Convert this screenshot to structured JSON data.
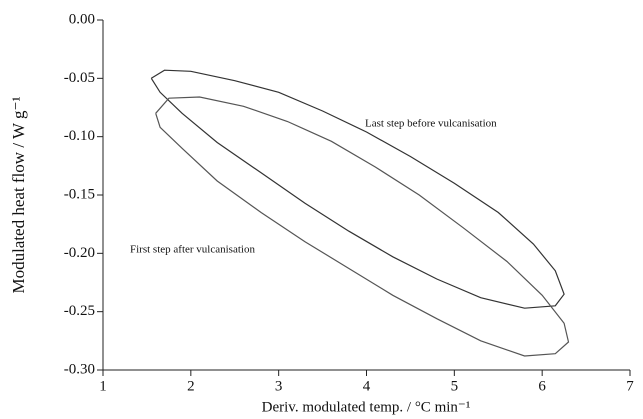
{
  "chart_data": {
    "type": "line",
    "xlabel": "Deriv. modulated temp. / °C min⁻¹",
    "ylabel": "Modulated heat flow / W g⁻¹",
    "xlim": [
      1,
      7
    ],
    "xticks": [
      1,
      2,
      3,
      4,
      5,
      6,
      7
    ],
    "ylim": [
      -0.3,
      0
    ],
    "yticks": [
      {
        "value": 0,
        "label": "0.00"
      },
      -0.05,
      {
        "value": -0.1,
        "label": "-0.10"
      },
      -0.15,
      {
        "value": -0.2,
        "label": "-0.20"
      },
      -0.25,
      {
        "value": -0.3,
        "label": "-0.30"
      }
    ],
    "grid": false,
    "legend": false,
    "series": [
      {
        "name": "Last step before vulcanisation",
        "color": "#333333",
        "x": [
          1.55,
          1.7,
          2.0,
          2.5,
          3.0,
          3.5,
          4.0,
          4.5,
          5.0,
          5.5,
          5.9,
          6.15,
          6.25,
          6.15,
          5.8,
          5.3,
          4.8,
          4.3,
          3.8,
          3.3,
          2.8,
          2.3,
          1.9,
          1.65,
          1.55
        ],
        "values": [
          -0.05,
          -0.043,
          -0.044,
          -0.052,
          -0.062,
          -0.078,
          -0.096,
          -0.117,
          -0.14,
          -0.165,
          -0.192,
          -0.215,
          -0.235,
          -0.245,
          -0.247,
          -0.238,
          -0.222,
          -0.203,
          -0.181,
          -0.157,
          -0.131,
          -0.105,
          -0.08,
          -0.062,
          -0.05
        ]
      },
      {
        "name": "First step after vulcanisation",
        "color": "#555555",
        "x": [
          1.6,
          1.75,
          2.1,
          2.6,
          3.1,
          3.6,
          4.1,
          4.6,
          5.1,
          5.6,
          6.0,
          6.25,
          6.3,
          6.15,
          5.8,
          5.3,
          4.8,
          4.3,
          3.8,
          3.3,
          2.8,
          2.3,
          1.9,
          1.65,
          1.6
        ],
        "values": [
          -0.08,
          -0.067,
          -0.066,
          -0.074,
          -0.087,
          -0.104,
          -0.126,
          -0.15,
          -0.178,
          -0.207,
          -0.236,
          -0.26,
          -0.276,
          -0.286,
          -0.288,
          -0.275,
          -0.256,
          -0.236,
          -0.213,
          -0.19,
          -0.165,
          -0.138,
          -0.11,
          -0.092,
          -0.08
        ]
      }
    ]
  }
}
